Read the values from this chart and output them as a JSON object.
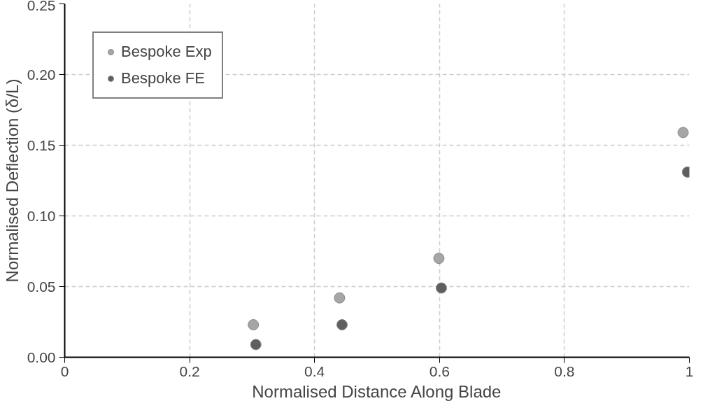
{
  "chart_data": {
    "type": "scatter",
    "xlabel": "Normalised Distance Along Blade",
    "ylabel": "Normalised Deflection (δ/L)",
    "series": [
      {
        "name": "Bespoke Exp",
        "color": "#a6a6a6",
        "x": [
          0.302,
          0.44,
          0.599,
          0.99
        ],
        "values": [
          0.023,
          0.042,
          0.07,
          0.159
        ]
      },
      {
        "name": "Bespoke FE",
        "color": "#5f5f5f",
        "x": [
          0.306,
          0.444,
          0.603,
          0.997
        ],
        "values": [
          0.009,
          0.023,
          0.049,
          0.131
        ]
      }
    ],
    "xlim": [
      0,
      1
    ],
    "xticks": [
      0,
      0.2,
      0.4,
      0.6,
      0.8,
      1
    ],
    "ylim": [
      0,
      0.25
    ],
    "yticks": [
      {
        "value": 0,
        "label": "0.00"
      },
      {
        "value": 0.05,
        "label": "0.05"
      },
      {
        "value": 0.1,
        "label": "0.10"
      },
      {
        "value": 0.15,
        "label": "0.15"
      },
      {
        "value": 0.2,
        "label": "0.20"
      },
      {
        "value": 0.25,
        "label": "0.25"
      }
    ],
    "grid": true,
    "legend": "top left",
    "marker": "circle"
  }
}
